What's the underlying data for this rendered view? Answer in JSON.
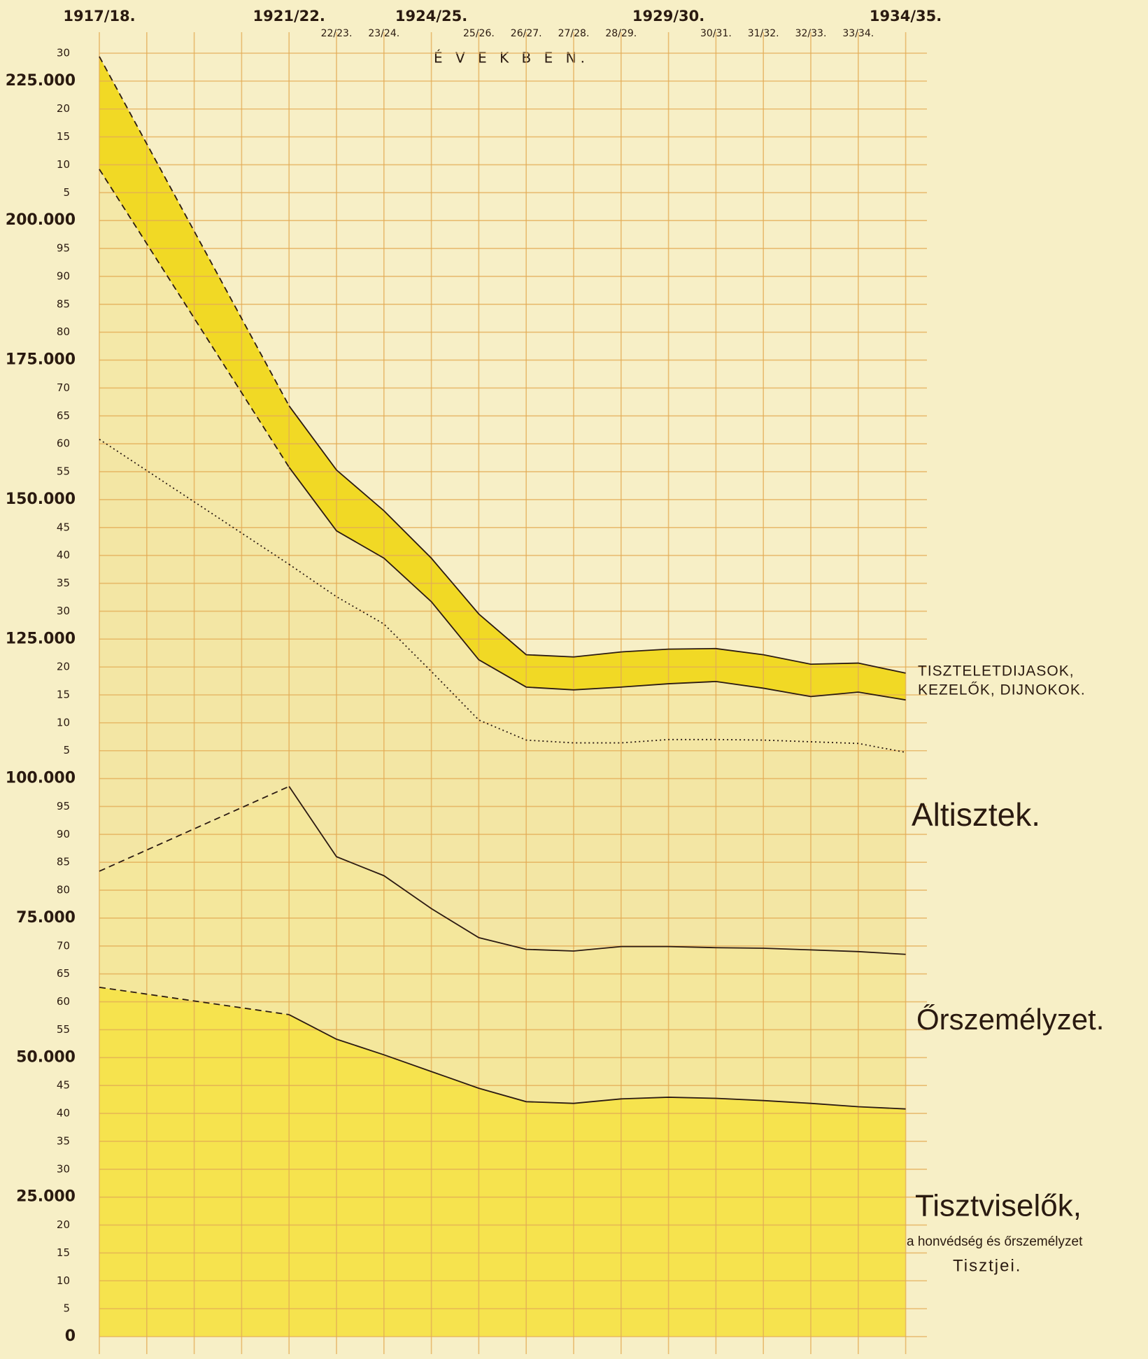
{
  "chart_data": {
    "type": "stacked_area",
    "annotation": "É V E K B E N.",
    "categories": [
      "1917/18.",
      null,
      null,
      null,
      "1921/22.",
      "22/23.",
      "23/24.",
      "1924/25.",
      "25/26.",
      "26/27.",
      "27/28.",
      "28/29.",
      "1929/30.",
      "30/31.",
      "31/32.",
      "32/33.",
      "33/34.",
      "1934/35."
    ],
    "ylim": [
      0,
      230000
    ],
    "yticks": [
      0,
      {
        "value": 5000,
        "label": "5"
      },
      {
        "value": 10000,
        "label": "10"
      },
      {
        "value": 15000,
        "label": "15"
      },
      {
        "value": 20000,
        "label": "20"
      },
      {
        "value": 25000,
        "label": "25.000"
      },
      {
        "value": 30000,
        "label": "30"
      },
      {
        "value": 35000,
        "label": "35"
      },
      {
        "value": 40000,
        "label": "40"
      },
      {
        "value": 45000,
        "label": "45"
      },
      {
        "value": 50000,
        "label": "50.000"
      },
      {
        "value": 55000,
        "label": "55"
      },
      {
        "value": 60000,
        "label": "60"
      },
      {
        "value": 65000,
        "label": "65"
      },
      {
        "value": 70000,
        "label": "70"
      },
      {
        "value": 75000,
        "label": "75.000"
      },
      {
        "value": 80000,
        "label": "80"
      },
      {
        "value": 85000,
        "label": "85"
      },
      {
        "value": 90000,
        "label": "90"
      },
      {
        "value": 95000,
        "label": "95"
      },
      {
        "value": 100000,
        "label": "100.000"
      },
      {
        "value": 105000,
        "label": "5"
      },
      {
        "value": 110000,
        "label": "10"
      },
      {
        "value": 115000,
        "label": "15"
      },
      {
        "value": 120000,
        "label": "20"
      },
      {
        "value": 125000,
        "label": "125.000"
      },
      {
        "value": 130000,
        "label": "30"
      },
      {
        "value": 135000,
        "label": "35"
      },
      {
        "value": 140000,
        "label": "40"
      },
      {
        "value": 145000,
        "label": "45"
      },
      {
        "value": 150000,
        "label": "150.000"
      },
      {
        "value": 155000,
        "label": "55"
      },
      {
        "value": 160000,
        "label": "60"
      },
      {
        "value": 165000,
        "label": "65"
      },
      {
        "value": 170000,
        "label": "70"
      },
      {
        "value": 175000,
        "label": "175.000"
      },
      {
        "value": 180000,
        "label": "80"
      },
      {
        "value": 185000,
        "label": "85"
      },
      {
        "value": 190000,
        "label": "90"
      },
      {
        "value": 195000,
        "label": "95"
      },
      {
        "value": 200000,
        "label": "200.000"
      },
      {
        "value": 205000,
        "label": "5"
      },
      {
        "value": 210000,
        "label": "10"
      },
      {
        "value": 215000,
        "label": "15"
      },
      {
        "value": 220000,
        "label": "20"
      },
      {
        "value": 225000,
        "label": "225.000"
      },
      {
        "value": 230000,
        "label": "30"
      }
    ],
    "grid": true,
    "series": [
      {
        "name": "Tisztviselők,",
        "sublabel": [
          "a honvédség és őrszemélyzet",
          "Tisztjei."
        ],
        "color": "#f6e34e",
        "line_style": "solid",
        "values": [
          62600,
          null,
          null,
          null,
          57700,
          53300,
          50500,
          47500,
          44500,
          42100,
          41800,
          42600,
          42900,
          42700,
          42300,
          41800,
          41200,
          40800
        ]
      },
      {
        "name": "Őrszemélyzet.",
        "color": "#f4e79c",
        "line_style": "solid",
        "values": [
          20800,
          null,
          null,
          null,
          40900,
          32700,
          32100,
          29200,
          27000,
          27300,
          27300,
          27300,
          27000,
          27000,
          27300,
          27500,
          27800,
          27700
        ]
      },
      {
        "name": "Altisztek.",
        "color": "#f3e6a4",
        "line_style": "dotted",
        "values": [
          77400,
          null,
          null,
          null,
          39800,
          46600,
          45100,
          42500,
          39000,
          37500,
          37300,
          36500,
          37100,
          37300,
          37300,
          37300,
          37300,
          36200
        ]
      },
      {
        "name": "KEZELŐK, DIJNOKOK.",
        "color": "#f4e8a8",
        "line_style": "solid",
        "values": [
          48400,
          null,
          null,
          null,
          17400,
          11800,
          11800,
          12500,
          10800,
          9500,
          9500,
          10000,
          10000,
          10400,
          9300,
          8100,
          9200,
          9400
        ]
      },
      {
        "name": "TISZTELETDIJASOK,",
        "color": "#f1d925",
        "line_style": "solid",
        "values": [
          20200,
          null,
          null,
          null,
          11000,
          10900,
          8500,
          7800,
          8200,
          5800,
          5900,
          6300,
          6200,
          5900,
          6000,
          5800,
          5200,
          4800
        ]
      }
    ]
  }
}
